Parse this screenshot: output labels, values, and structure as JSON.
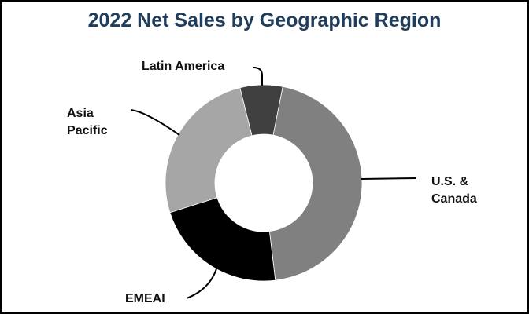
{
  "chart_data": {
    "type": "pie",
    "variant": "donut",
    "title": "2022 Net Sales by Geographic Region",
    "categories": [
      "Latin America",
      "U.S. & Canada",
      "EMEAI",
      "Asia Pacific"
    ],
    "values": [
      7,
      45,
      22,
      26
    ],
    "unit": "% of net sales (estimated from slice angles)",
    "colors": [
      "#404040",
      "#808080",
      "#000000",
      "#a6a6a6"
    ],
    "legend": "none (callout labels)",
    "start_angle_deg": -14,
    "direction": "clockwise"
  },
  "labels": {
    "latin_america": "Latin America",
    "asia_pacific_1": "Asia",
    "asia_pacific_2": "Pacific",
    "us_canada_1": "U.S. &",
    "us_canada_2": "Canada",
    "emeai": "EMEAI"
  },
  "colors": {
    "title": "#1f3d5c"
  }
}
